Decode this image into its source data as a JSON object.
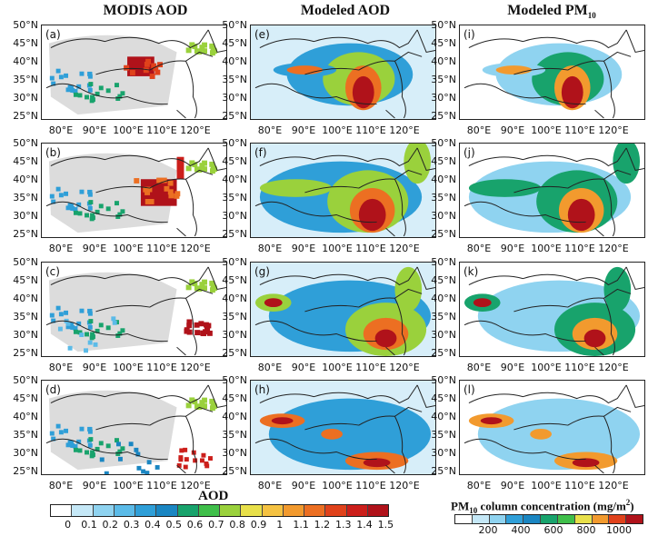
{
  "columns": [
    {
      "title": "MODIS AOD"
    },
    {
      "title": "Modeled AOD"
    },
    {
      "title_main": "Modeled PM",
      "title_sub": "10"
    }
  ],
  "panel_tags": [
    [
      "(a)",
      "(e)",
      "(i)"
    ],
    [
      "(b)",
      "(f)",
      "(j)"
    ],
    [
      "(c)",
      "(g)",
      "(k)"
    ],
    [
      "(d)",
      "(h)",
      "(l)"
    ]
  ],
  "lat_labels": [
    "50°N",
    "45°N",
    "40°N",
    "35°N",
    "30°N",
    "25°N"
  ],
  "lon_labels": [
    "80°E",
    "90°E",
    "100°E",
    "110°E",
    "120°E"
  ],
  "aod_colorbar": {
    "title": "AOD",
    "ticks": [
      "0",
      "0.1",
      "0.2",
      "0.3",
      "0.4",
      "0.5",
      "0.6",
      "0.7",
      "0.8",
      "0.9",
      "1",
      "1.1",
      "1.2",
      "1.3",
      "1.4",
      "1.5"
    ],
    "colors": [
      "#ffffff",
      "#c5e8f7",
      "#8fd3f0",
      "#5bbbe8",
      "#2f9fd8",
      "#1a86c2",
      "#18a36c",
      "#3fbf4a",
      "#9ad13c",
      "#e8e04a",
      "#f5c242",
      "#f29a2e",
      "#ec6f22",
      "#e0421b",
      "#cc1f1b",
      "#b0121a"
    ]
  },
  "pm_colorbar": {
    "title_main": "PM",
    "title_sub": "10",
    "title_rest": " column concentration (mg/m",
    "title_sup": "2",
    "title_end": ")",
    "ticks": [
      "200",
      "400",
      "600",
      "800",
      "1000"
    ],
    "colors": [
      "#ffffff",
      "#c5e8f7",
      "#8fd3f0",
      "#2f9fd8",
      "#1a86c2",
      "#18a36c",
      "#3fbf4a",
      "#e8e04a",
      "#f29a2e",
      "#e0421b",
      "#b0121a"
    ]
  },
  "colors": {
    "missing": "#dcdcdc",
    "border": "#222222"
  }
}
